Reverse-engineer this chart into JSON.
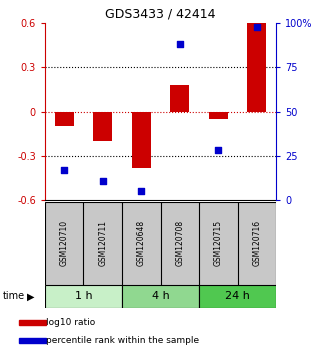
{
  "title": "GDS3433 / 42414",
  "samples": [
    "GSM120710",
    "GSM120711",
    "GSM120648",
    "GSM120708",
    "GSM120715",
    "GSM120716"
  ],
  "log10_ratio": [
    -0.1,
    -0.2,
    -0.38,
    0.18,
    -0.05,
    0.6
  ],
  "percentile_rank": [
    17,
    11,
    5,
    88,
    28,
    98
  ],
  "bar_color": "#cc0000",
  "dot_color": "#0000cc",
  "ylim_left": [
    -0.6,
    0.6
  ],
  "ylim_right": [
    0,
    100
  ],
  "yticks_left": [
    -0.6,
    -0.3,
    0.0,
    0.3,
    0.6
  ],
  "yticks_right": [
    0,
    25,
    50,
    75,
    100
  ],
  "ytick_labels_left": [
    "-0.6",
    "-0.3",
    "0",
    "0.3",
    "0.6"
  ],
  "ytick_labels_right": [
    "0",
    "25",
    "50",
    "75",
    "100%"
  ],
  "hline_dashed_black": [
    -0.3,
    0.3
  ],
  "hline_dashed_red": 0.0,
  "time_groups": [
    {
      "label": "1 h",
      "samples": [
        0,
        1
      ],
      "color": "#c8f0c8"
    },
    {
      "label": "4 h",
      "samples": [
        2,
        3
      ],
      "color": "#90d890"
    },
    {
      "label": "24 h",
      "samples": [
        4,
        5
      ],
      "color": "#50c850"
    }
  ],
  "legend_items": [
    {
      "label": "log10 ratio",
      "color": "#cc0000"
    },
    {
      "label": "percentile rank within the sample",
      "color": "#0000cc"
    }
  ],
  "sample_box_color": "#c8c8c8",
  "bg_color": "#ffffff",
  "plot_bg_color": "#ffffff",
  "tick_label_color_left": "#cc0000",
  "tick_label_color_right": "#0000cc",
  "bar_width": 0.5,
  "dot_size": 18
}
